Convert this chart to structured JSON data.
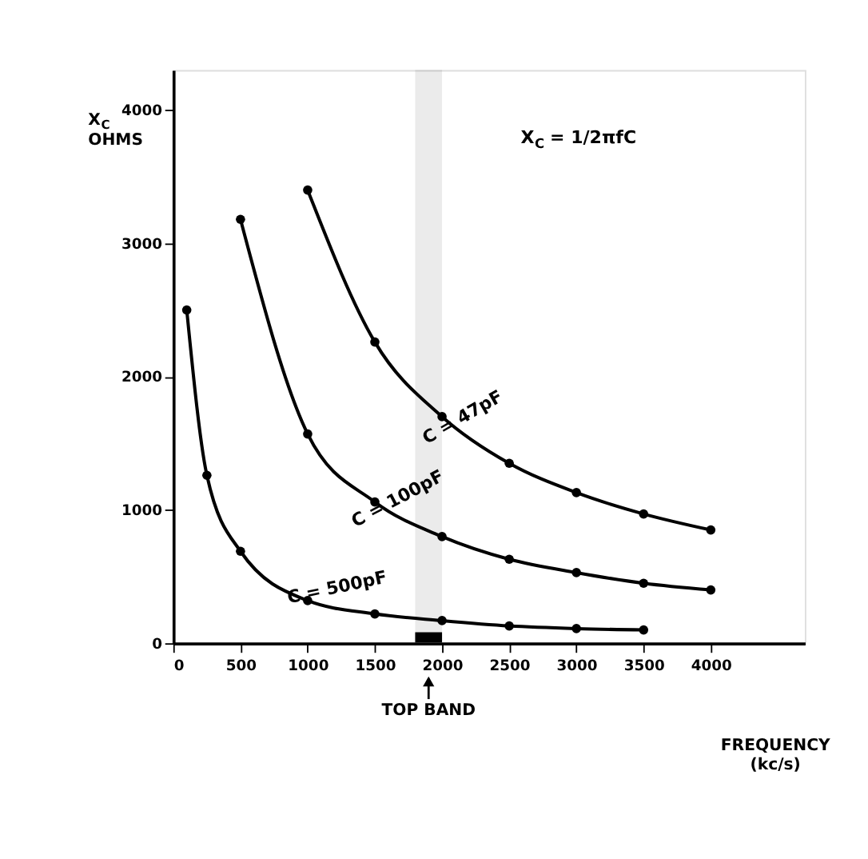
{
  "chart_data": {
    "type": "line",
    "xlabel": "FREQUENCY (kc/s)",
    "ylabel": "X$_{C}$ OHMS",
    "annotations": [
      "X$_{C}$ = 1/2πfC"
    ],
    "xlim": [
      0,
      4700
    ],
    "xticks": [
      0,
      500,
      1000,
      1500,
      2000,
      2500,
      3000,
      3500,
      4000
    ],
    "ylim": [
      0,
      4300
    ],
    "yticks": [
      0,
      1000,
      2000,
      3000,
      4000
    ],
    "marker": "circle",
    "line_style": "solid",
    "grid": false,
    "bands": [
      {
        "axis": "x",
        "from": 1800,
        "to": 2000,
        "label": "TOP BAND",
        "color": "#000000"
      }
    ],
    "series": [
      {
        "name": "C = 47pF",
        "color": "#000000",
        "x": [
          1000,
          1500,
          2000,
          2500,
          3000,
          3500,
          4000
        ],
        "values": [
          3400,
          2260,
          1700,
          1350,
          1130,
          970,
          850
        ]
      },
      {
        "name": "C = 100pF",
        "color": "#000000",
        "x": [
          500,
          1000,
          1500,
          2000,
          2500,
          3000,
          3500,
          4000
        ],
        "values": [
          3180,
          1570,
          1060,
          800,
          630,
          530,
          450,
          400
        ]
      },
      {
        "name": "C = 500pF",
        "color": "#000000",
        "x": [
          100,
          250,
          500,
          1000,
          1500,
          2000,
          2500,
          3000,
          3500
        ],
        "values": [
          2500,
          1260,
          690,
          320,
          220,
          170,
          130,
          110,
          100
        ]
      }
    ]
  }
}
